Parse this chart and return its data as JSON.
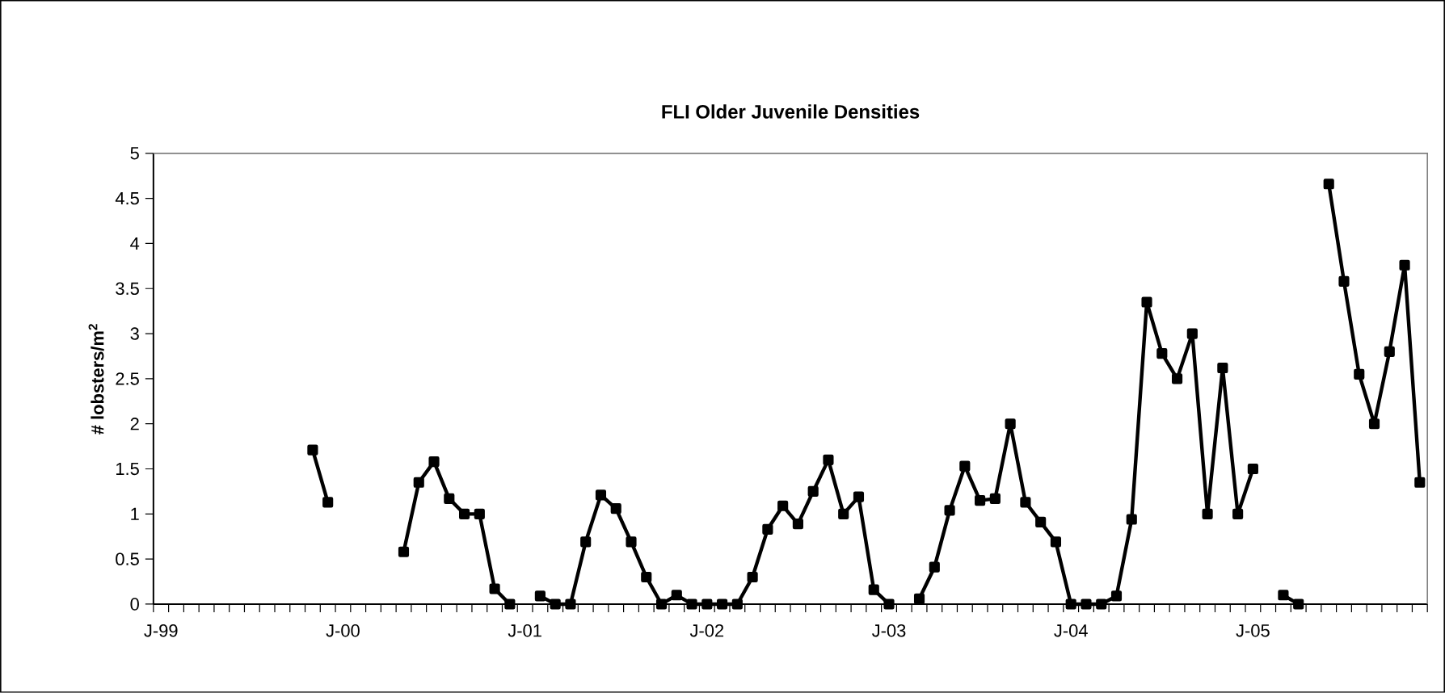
{
  "chart_data": {
    "type": "line",
    "title": "FLI Older Juvenile Densities",
    "ylabel": "# lobsters/m$^{2}$",
    "categories": [
      "J-99",
      null,
      null,
      null,
      null,
      null,
      null,
      null,
      null,
      null,
      null,
      null,
      "J-00",
      null,
      null,
      null,
      null,
      null,
      null,
      null,
      null,
      null,
      null,
      null,
      "J-01",
      null,
      null,
      null,
      null,
      null,
      null,
      null,
      null,
      null,
      null,
      null,
      "J-02",
      null,
      null,
      null,
      null,
      null,
      null,
      null,
      null,
      null,
      null,
      null,
      "J-03",
      null,
      null,
      null,
      null,
      null,
      null,
      null,
      null,
      null,
      null,
      null,
      "J-04",
      null,
      null,
      null,
      null,
      null,
      null,
      null,
      null,
      null,
      null,
      null,
      "J-05",
      null,
      null,
      null,
      null,
      null,
      null,
      null,
      null,
      null,
      null,
      null
    ],
    "series": [
      {
        "color": "#000000",
        "values": [
          null,
          null,
          null,
          null,
          null,
          null,
          null,
          null,
          null,
          null,
          1.71,
          1.13,
          null,
          null,
          null,
          null,
          0.58,
          1.35,
          1.58,
          1.17,
          1.0,
          1.0,
          0.17,
          0,
          null,
          0.09,
          0,
          0,
          0.69,
          1.21,
          1.06,
          0.69,
          0.3,
          0,
          0.1,
          0,
          0,
          0,
          0,
          0.3,
          0.83,
          1.09,
          0.89,
          1.25,
          1.6,
          1.0,
          1.19,
          0.16,
          0,
          null,
          0.06,
          0.41,
          1.04,
          1.53,
          1.15,
          1.17,
          2.0,
          1.13,
          0.91,
          0.69,
          0,
          0,
          0,
          0.09,
          0.94,
          3.35,
          2.78,
          2.5,
          3.0,
          1.0,
          2.62,
          1.0,
          1.5,
          null,
          0.1,
          0,
          null,
          4.66,
          3.58,
          2.55,
          2.0,
          2.8,
          3.76,
          1.35
        ]
      }
    ],
    "ylim": [
      0,
      5
    ],
    "yticks": [
      0,
      0.5,
      1,
      1.5,
      2,
      2.5,
      3,
      3.5,
      4,
      4.5,
      5
    ],
    "grid": false,
    "marker": "square",
    "line_style": "solid"
  }
}
